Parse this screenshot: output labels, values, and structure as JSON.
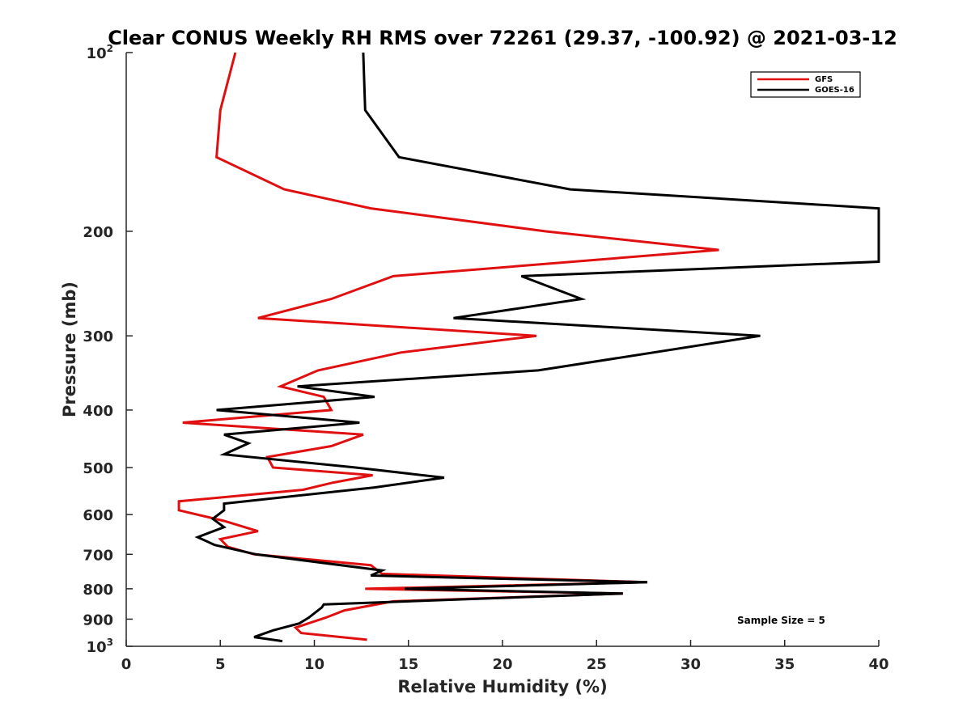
{
  "chart_data": {
    "type": "line",
    "title": "Clear CONUS Weekly RH RMS over 72261 (29.37, -100.92) @ 2021-03-12",
    "xlabel": "Relative Humidity (%)",
    "ylabel": "Pressure (mb)",
    "xlim": [
      0,
      40
    ],
    "ylim": [
      100,
      1000
    ],
    "yscale": "log",
    "y_reversed": true,
    "grid": false,
    "legend_placement": "top-right",
    "x_ticks": [
      "0",
      "5",
      "10",
      "15",
      "20",
      "25",
      "30",
      "35",
      "40"
    ],
    "y_ticks": [
      {
        "value": 100,
        "base": "10",
        "exp": "2"
      },
      {
        "value": 200,
        "label": "200"
      },
      {
        "value": 300,
        "label": "300"
      },
      {
        "value": 400,
        "label": "400"
      },
      {
        "value": 500,
        "label": "500"
      },
      {
        "value": 600,
        "label": "600"
      },
      {
        "value": 700,
        "label": "700"
      },
      {
        "value": 800,
        "label": "800"
      },
      {
        "value": 900,
        "label": "900"
      },
      {
        "value": 1000,
        "base": "10",
        "exp": "3"
      }
    ],
    "annotation": "Sample Size = 5",
    "series": [
      {
        "name": "GFS",
        "color": "#e01010",
        "points": [
          [
            5.8,
            100
          ],
          [
            5.0,
            125
          ],
          [
            4.8,
            150
          ],
          [
            8.4,
            170
          ],
          [
            13.0,
            183
          ],
          [
            22.3,
            200
          ],
          [
            31.5,
            215
          ],
          [
            14.2,
            238
          ],
          [
            10.9,
            260
          ],
          [
            7.0,
            280
          ],
          [
            21.8,
            300
          ],
          [
            14.6,
            320
          ],
          [
            10.2,
            343
          ],
          [
            8.2,
            365
          ],
          [
            10.5,
            380
          ],
          [
            10.9,
            400
          ],
          [
            3.0,
            420
          ],
          [
            12.6,
            440
          ],
          [
            10.9,
            460
          ],
          [
            7.5,
            480
          ],
          [
            7.8,
            500
          ],
          [
            13.1,
            515
          ],
          [
            11.0,
            530
          ],
          [
            9.4,
            545
          ],
          [
            2.8,
            570
          ],
          [
            2.8,
            590
          ],
          [
            5.2,
            615
          ],
          [
            7.0,
            640
          ],
          [
            5.0,
            660
          ],
          [
            5.4,
            680
          ],
          [
            6.8,
            700
          ],
          [
            13.0,
            730
          ],
          [
            13.6,
            755
          ],
          [
            27.7,
            780
          ],
          [
            12.7,
            800
          ],
          [
            26.4,
            815
          ],
          [
            14.2,
            840
          ],
          [
            11.6,
            870
          ],
          [
            10.6,
            895
          ],
          [
            9.0,
            930
          ],
          [
            9.3,
            950
          ],
          [
            12.8,
            975
          ]
        ]
      },
      {
        "name": "GOES-16",
        "color": "#000000",
        "points": [
          [
            12.6,
            100
          ],
          [
            12.7,
            125
          ],
          [
            14.5,
            150
          ],
          [
            23.6,
            170
          ],
          [
            40.0,
            183
          ],
          [
            40.0,
            225
          ],
          [
            21.0,
            238
          ],
          [
            24.2,
            260
          ],
          [
            17.4,
            280
          ],
          [
            33.7,
            300
          ],
          [
            21.9,
            343
          ],
          [
            9.1,
            365
          ],
          [
            13.2,
            380
          ],
          [
            4.8,
            400
          ],
          [
            12.4,
            420
          ],
          [
            5.2,
            440
          ],
          [
            6.5,
            455
          ],
          [
            5.2,
            475
          ],
          [
            12.2,
            500
          ],
          [
            16.9,
            520
          ],
          [
            13.2,
            540
          ],
          [
            5.2,
            575
          ],
          [
            5.2,
            590
          ],
          [
            4.6,
            610
          ],
          [
            5.2,
            630
          ],
          [
            3.8,
            655
          ],
          [
            4.7,
            675
          ],
          [
            6.9,
            700
          ],
          [
            13.6,
            745
          ],
          [
            13.0,
            760
          ],
          [
            27.7,
            780
          ],
          [
            14.8,
            800
          ],
          [
            26.4,
            815
          ],
          [
            10.5,
            850
          ],
          [
            10.4,
            860
          ],
          [
            9.7,
            895
          ],
          [
            9.2,
            915
          ],
          [
            7.8,
            940
          ],
          [
            6.8,
            965
          ],
          [
            8.3,
            980
          ]
        ]
      }
    ]
  }
}
